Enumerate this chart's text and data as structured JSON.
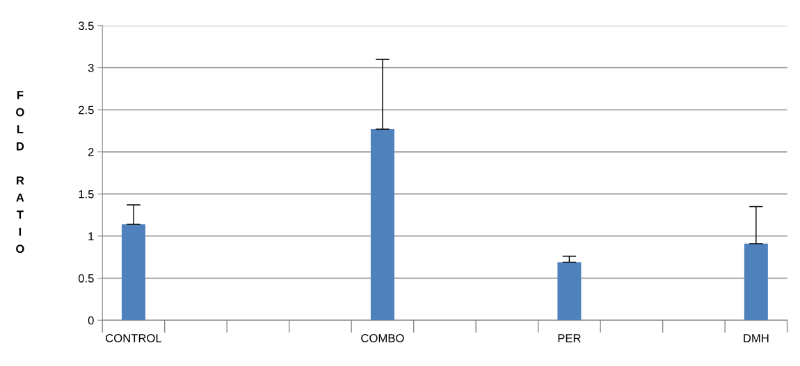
{
  "chart_data": {
    "type": "bar",
    "ylabel": "FOLD RATIO",
    "categories": [
      "CONTROL",
      null,
      null,
      null,
      "COMBO",
      null,
      null,
      "PER",
      null,
      null,
      "DMH"
    ],
    "values": [
      1.14,
      null,
      null,
      null,
      2.27,
      null,
      null,
      0.69,
      null,
      null,
      0.91
    ],
    "errors": [
      [
        1.14,
        1.37
      ],
      null,
      null,
      null,
      [
        2.27,
        3.1
      ],
      null,
      null,
      [
        0.69,
        0.76
      ],
      null,
      null,
      [
        0.91,
        1.35
      ]
    ],
    "color": "#4f81bd",
    "ylim": [
      0,
      3.5
    ],
    "yticks": [
      0,
      0.5,
      1,
      1.5,
      2,
      2.5,
      3,
      3.5
    ],
    "grid": "y"
  }
}
